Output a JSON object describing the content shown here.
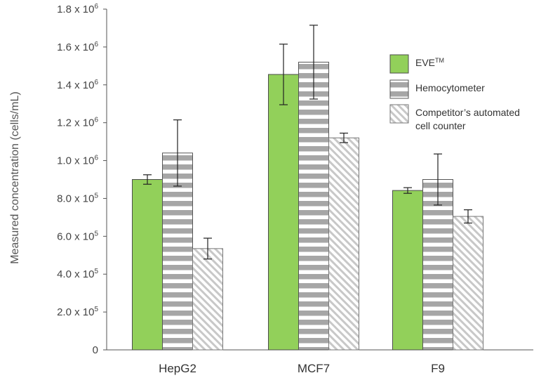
{
  "chart_data": {
    "type": "bar",
    "categories": [
      "HepG2",
      "MCF7",
      "F9"
    ],
    "series": [
      {
        "name": "EVE™",
        "values": [
          900000,
          1455000,
          842000
        ],
        "error": [
          25000,
          160000,
          15000
        ],
        "color": "#92d05a",
        "pattern": "solid"
      },
      {
        "name": "Hemocytometer",
        "values": [
          1040000,
          1520000,
          900000
        ],
        "error": [
          175000,
          195000,
          135000
        ],
        "color": "#a6a6a6",
        "pattern": "horizontal-stripes"
      },
      {
        "name": "Competitor's automated cell counter",
        "values": [
          535000,
          1120000,
          705000
        ],
        "error": [
          55000,
          25000,
          35000
        ],
        "color": "#c8c8c8",
        "pattern": "diagonal-stripes"
      }
    ],
    "legend_lines": [
      [
        "EVE"
      ],
      [
        "Hemocytometer"
      ],
      [
        "Competitor’s automated",
        "cell counter"
      ]
    ],
    "legend_superscript": "TM",
    "ylabel": "Measured concentration (cells/mL)",
    "xlabel": "",
    "ylim": [
      0,
      1800000
    ],
    "yticks": [
      {
        "value": 0,
        "base": "0",
        "exp": ""
      },
      {
        "value": 200000,
        "base": "2.0 x 10",
        "exp": "5"
      },
      {
        "value": 400000,
        "base": "4.0 x 10",
        "exp": "5"
      },
      {
        "value": 600000,
        "base": "6.0 x 10",
        "exp": "5"
      },
      {
        "value": 800000,
        "base": "8.0 x 10",
        "exp": "5"
      },
      {
        "value": 1000000,
        "base": "1.0 x 10",
        "exp": "6"
      },
      {
        "value": 1200000,
        "base": "1.2 x 10",
        "exp": "6"
      },
      {
        "value": 1400000,
        "base": "1.4 x 10",
        "exp": "6"
      },
      {
        "value": 1600000,
        "base": "1.6 x 10",
        "exp": "6"
      },
      {
        "value": 1800000,
        "base": "1.8 x 10",
        "exp": "6"
      }
    ],
    "grid": false,
    "legend_position": "right"
  }
}
